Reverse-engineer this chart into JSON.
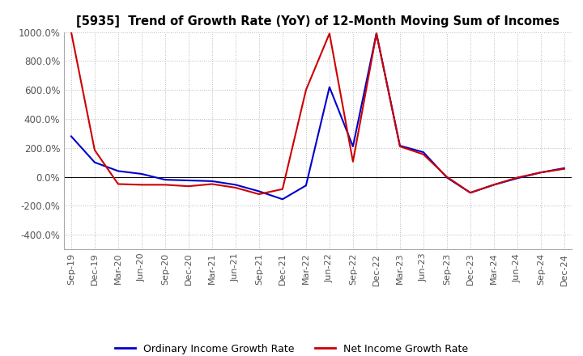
{
  "title": "[5935]  Trend of Growth Rate (YoY) of 12-Month Moving Sum of Incomes",
  "ylim": [
    -500,
    1000
  ],
  "yticks": [
    -400,
    -200,
    0,
    200,
    400,
    600,
    800,
    1000
  ],
  "ytick_labels": [
    "-400.0%",
    "-200.0%",
    "0.0%",
    "200.0%",
    "400.0%",
    "600.0%",
    "800.0%",
    "1000.0%"
  ],
  "background_color": "#ffffff",
  "grid_color": "#bbbbbb",
  "ordinary_color": "#0000cc",
  "net_color": "#cc0000",
  "x_labels": [
    "Sep-19",
    "Dec-19",
    "Mar-20",
    "Jun-20",
    "Sep-20",
    "Dec-20",
    "Mar-21",
    "Jun-21",
    "Sep-21",
    "Dec-21",
    "Mar-22",
    "Jun-22",
    "Sep-22",
    "Dec-22",
    "Mar-23",
    "Jun-23",
    "Sep-23",
    "Dec-23",
    "Mar-24",
    "Jun-24",
    "Sep-24",
    "Dec-24"
  ],
  "ordinary_income": [
    280,
    100,
    40,
    20,
    -20,
    -25,
    -30,
    -55,
    -100,
    -155,
    -60,
    620,
    210,
    990,
    215,
    170,
    -5,
    -110,
    -55,
    -10,
    30,
    60
  ],
  "net_income": [
    1000,
    185,
    -50,
    -55,
    -55,
    -65,
    -50,
    -75,
    -120,
    -85,
    600,
    990,
    105,
    990,
    210,
    155,
    0,
    -110,
    -55,
    -5,
    30,
    55
  ]
}
